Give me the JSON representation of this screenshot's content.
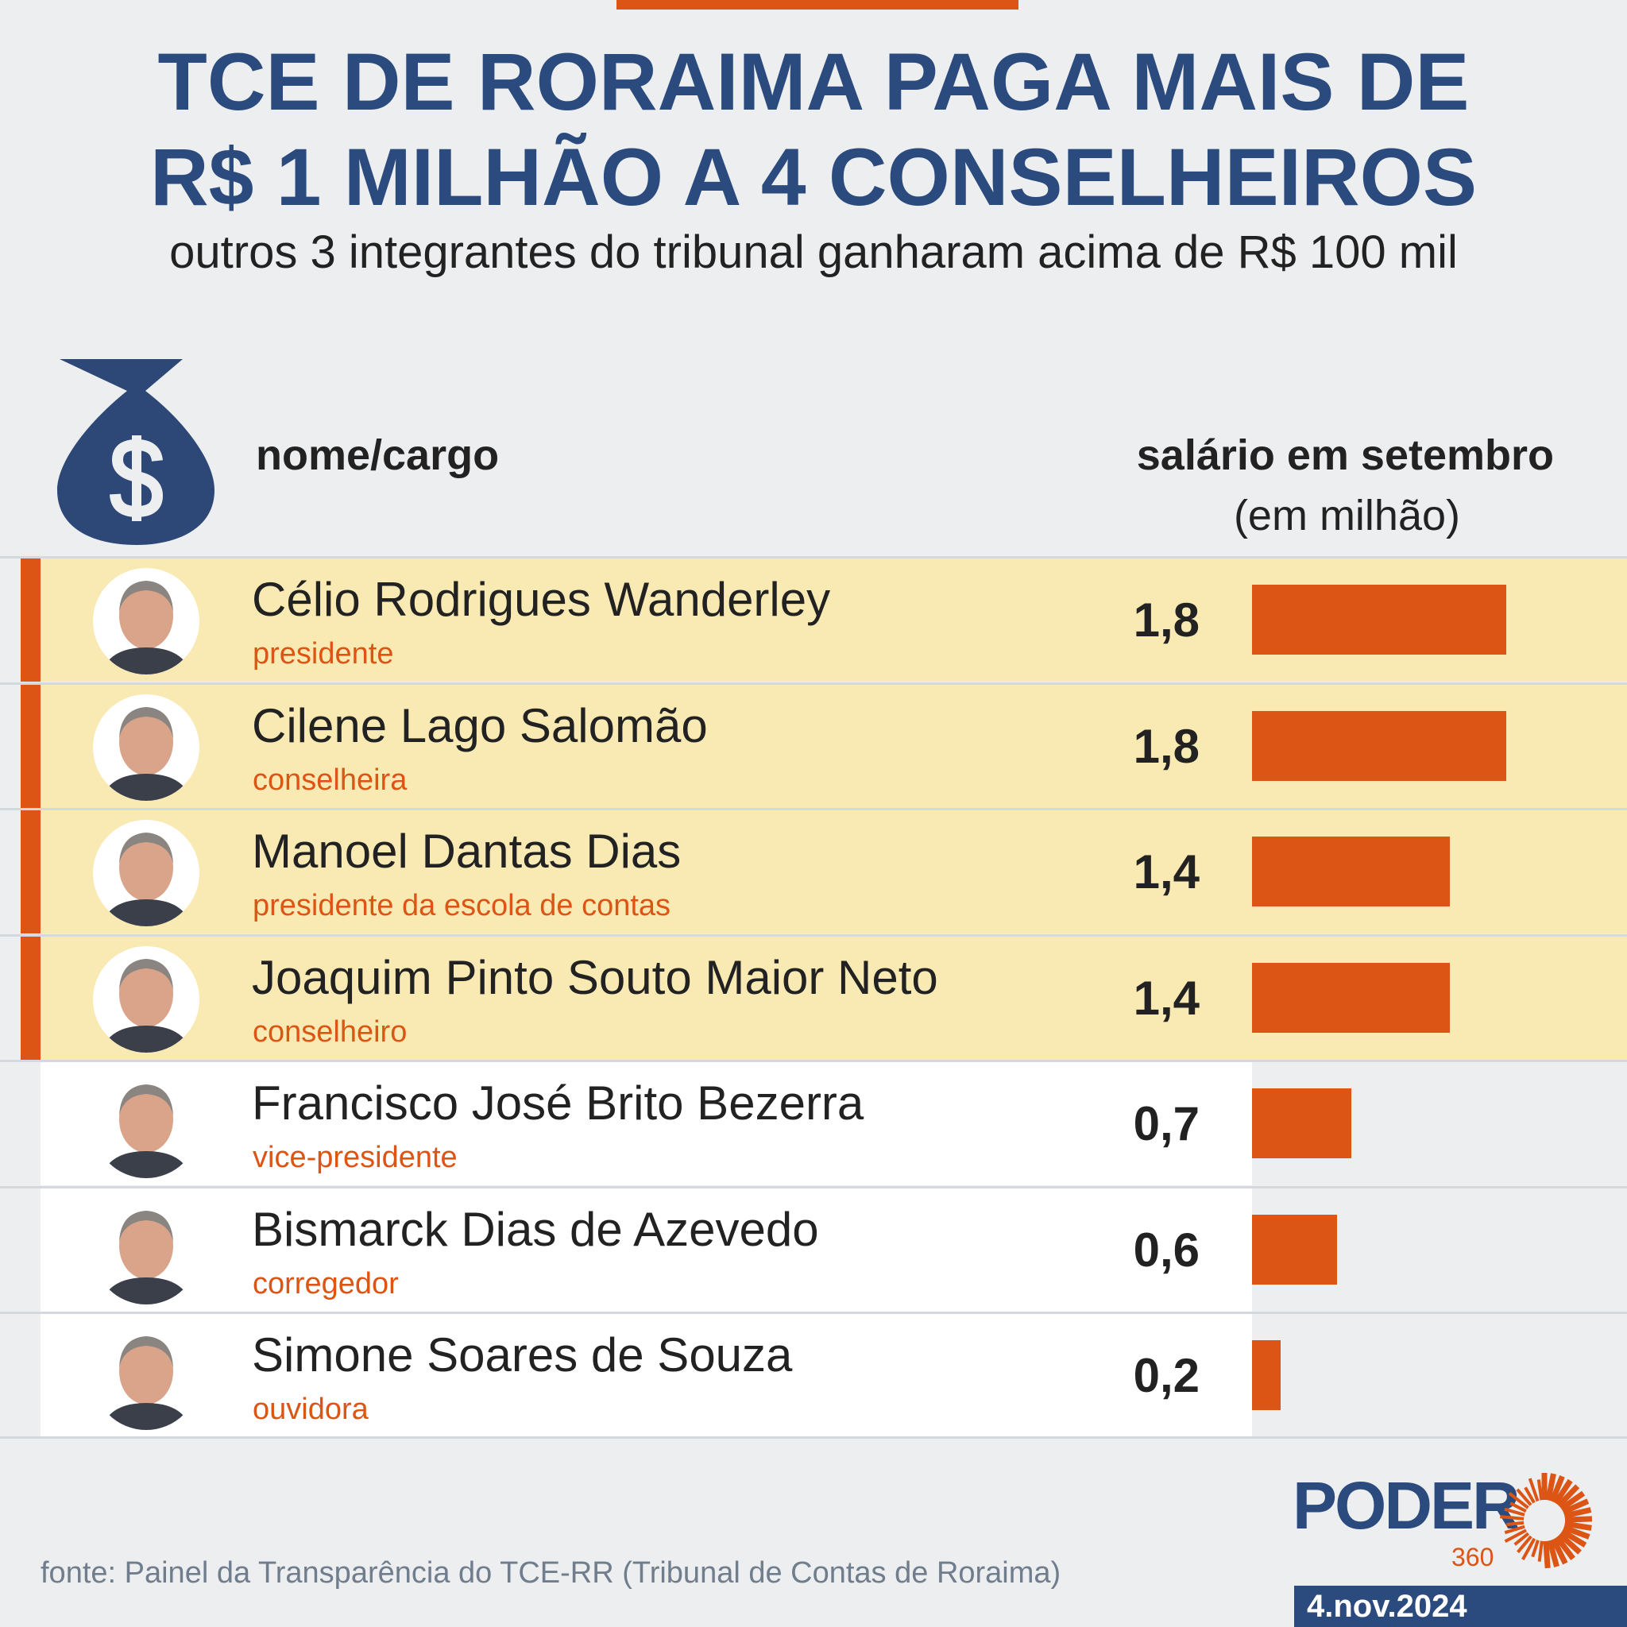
{
  "header": {
    "title_line1": "TCE DE RORAIMA PAGA MAIS DE",
    "title_line2": "R$ 1 MILHÃO A 4 CONSELHEIROS",
    "subtitle": "outros 3 integrantes do tribunal ganharam acima de R$ 100 mil"
  },
  "table_header": {
    "name_col": "nome/cargo",
    "salary_col": "salário em setembro",
    "salary_unit": "(em milhão)"
  },
  "colors": {
    "navy": "#2b4a7d",
    "orange": "#dd5514",
    "highlight": "#f9eab3"
  },
  "chart_data": {
    "type": "bar",
    "orientation": "horizontal",
    "title": "TCE DE RORAIMA PAGA MAIS DE R$ 1 MILHÃO A 4 CONSELHEIROS",
    "ylabel": "salário em setembro (em milhão)",
    "rows": [
      {
        "name": "Célio Rodrigues Wanderley",
        "role": "presidente",
        "value": 1.8,
        "label": "1,8",
        "highlight": true
      },
      {
        "name": "Cilene Lago Salomão",
        "role": "conselheira",
        "value": 1.8,
        "label": "1,8",
        "highlight": true
      },
      {
        "name": "Manoel Dantas Dias",
        "role": "presidente da escola de contas",
        "value": 1.4,
        "label": "1,4",
        "highlight": true
      },
      {
        "name": "Joaquim Pinto Souto Maior Neto",
        "role": "conselheiro",
        "value": 1.4,
        "label": "1,4",
        "highlight": true
      },
      {
        "name": "Francisco José Brito Bezerra",
        "role": "vice-presidente",
        "value": 0.7,
        "label": "0,7",
        "highlight": false
      },
      {
        "name": "Bismarck Dias de Azevedo",
        "role": "corregedor",
        "value": 0.6,
        "label": "0,6",
        "highlight": false
      },
      {
        "name": "Simone Soares de Souza",
        "role": "ouvidora",
        "value": 0.2,
        "label": "0,2",
        "highlight": false
      }
    ]
  },
  "footer": {
    "source": "fonte: Painel da Transparência do TCE-RR (Tribunal de Contas de Roraima)",
    "logo_text": "PODER",
    "logo_number": "360",
    "date": "4.nov.2024"
  }
}
